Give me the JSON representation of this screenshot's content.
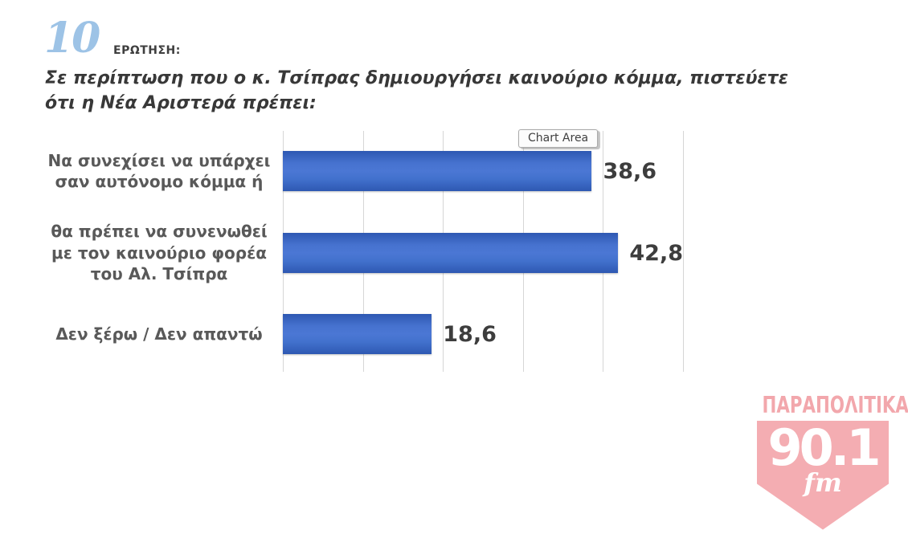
{
  "header": {
    "question_number": "10",
    "question_label": "ΕΡΩΤΗΣΗ:",
    "question_text": "Σε περίπτωση που ο κ. Τσίπρας δημιουργήσει καινούριο κόμμα, πιστεύετε ότι η Νέα Αριστερά πρέπει:"
  },
  "chart_data": {
    "type": "bar",
    "orientation": "horizontal",
    "categories": [
      "Να συνεχίσει να υπάρχει σαν αυτόνομο κόμμα ή",
      "θα πρέπει να συνενωθεί με τον καινούριο φορέα του Αλ. Τσίπρα",
      "Δεν ξέρω / Δεν απαντώ"
    ],
    "values": [
      38.6,
      42.8,
      18.6
    ],
    "value_labels": [
      "38,6",
      "42,8",
      "18,6"
    ],
    "xlim": [
      0,
      50
    ],
    "gridline_interval": 10,
    "grid": true,
    "legend": false,
    "bar_color": "#3f6bc6",
    "gridline_color": "#d6d6d6",
    "tooltip_label": "Chart Area"
  },
  "logo": {
    "station_name": "ΠΑΡΑΠΟΛΙΤΙΚΑ",
    "frequency": "90.1",
    "band": "fm",
    "accent_color": "#f2a7ac"
  }
}
